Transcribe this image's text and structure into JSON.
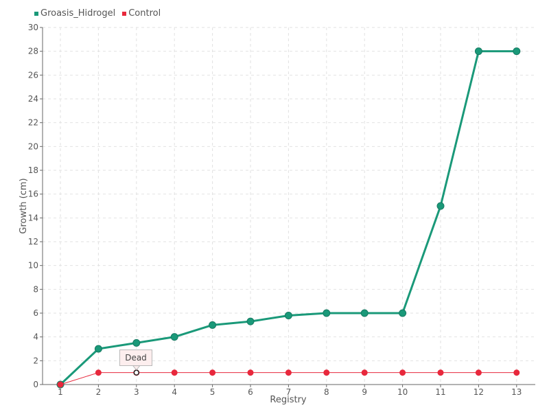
{
  "chart_data": {
    "type": "line",
    "title": "",
    "xlabel": "Registry",
    "ylabel": "Growth (cm)",
    "x": [
      "1",
      "2",
      "3",
      "4",
      "5",
      "6",
      "7",
      "8",
      "9",
      "10",
      "11",
      "12",
      "13"
    ],
    "ylim": [
      0,
      30
    ],
    "yticks": [
      0,
      2,
      4,
      6,
      8,
      10,
      12,
      14,
      16,
      18,
      20,
      22,
      24,
      26,
      28,
      30
    ],
    "grid": true,
    "legend_position": "top-left",
    "series": [
      {
        "name": "Groasis_Hidrogel",
        "color": "#1a9979",
        "values": [
          0,
          3,
          3.5,
          4,
          5,
          5.3,
          5.8,
          6,
          6,
          6,
          15,
          28,
          28
        ]
      },
      {
        "name": "Control",
        "color": "#e8283c",
        "values": [
          0,
          1,
          1,
          1,
          1,
          1,
          1,
          1,
          1,
          1,
          1,
          1,
          1
        ]
      }
    ],
    "annotation": {
      "text": "Dead",
      "series": "Control",
      "x": "3",
      "y": 1
    }
  }
}
